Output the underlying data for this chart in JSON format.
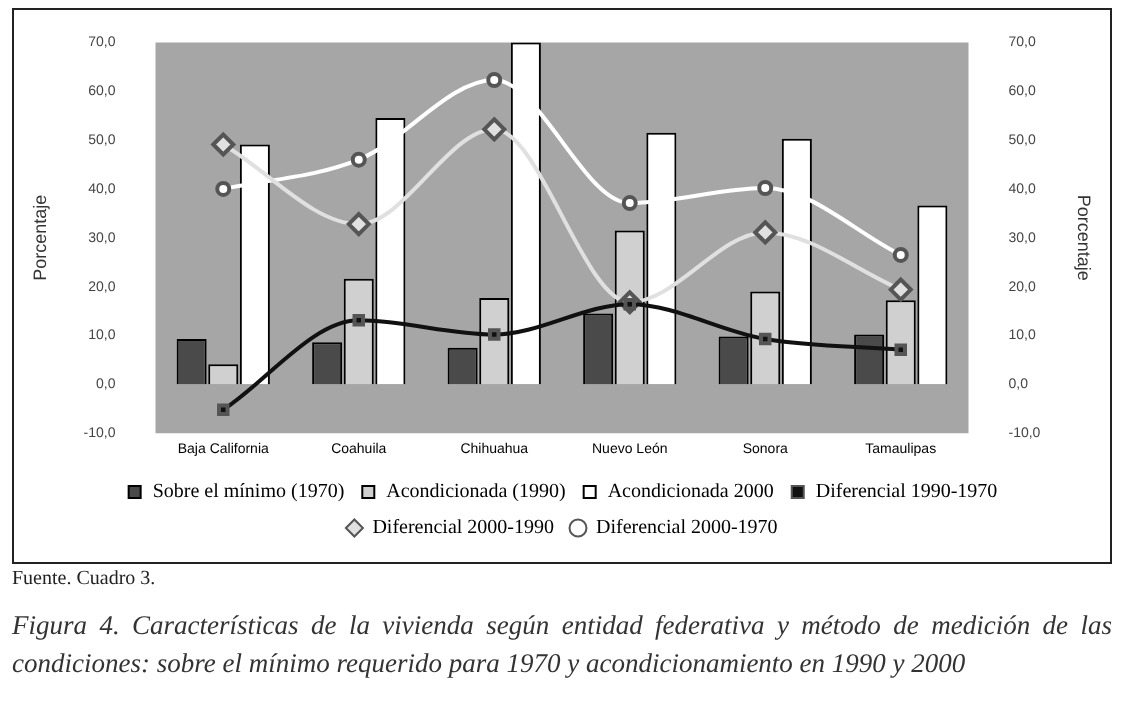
{
  "chart_data": {
    "type": "bar",
    "title": "Figura 4. Características de la vivienda según entidad federativa y método de medición de las condiciones: sobre el mínimo requerido para 1970 y acondicionamiento en 1990 y 2000",
    "ylabel": "Porcentaje",
    "y2label": "Porcentaje",
    "annotations": [
      "Fuente. Cuadro 3."
    ],
    "categories": [
      "Baja California",
      "Coahuila",
      "Chihuahua",
      "Nuevo León",
      "Sonora",
      "Tamaulipas"
    ],
    "series": [
      {
        "name": "Sobre el mínimo (1970)",
        "color": "#4a4a4a",
        "values": [
          9.3,
          8.6,
          7.5,
          14.5,
          9.8,
          10.2
        ]
      },
      {
        "name": "Acondicionada (1990)",
        "color": "#d0d0d0",
        "values": [
          4.1,
          21.6,
          17.7,
          31.5,
          19.0,
          17.2
        ]
      },
      {
        "name": "Acondicionada 2000",
        "color": "#ffffff",
        "values": [
          49.1,
          54.5,
          70.0,
          51.5,
          50.3,
          36.6
        ]
      },
      {
        "name": "Diferencial 1990-1970",
        "type": "line",
        "color": "#111111",
        "marker": "square",
        "values": [
          -5.2,
          13.1,
          10.2,
          16.4,
          9.3,
          7.1
        ]
      },
      {
        "name": "Diferencial 2000-1990",
        "type": "line",
        "color": "#e0e0e0",
        "marker": "diamond",
        "values": [
          49.1,
          32.8,
          52.2,
          16.8,
          31.1,
          19.4
        ]
      },
      {
        "name": "Diferencial 2000-1970",
        "type": "line",
        "color": "#ffffff",
        "marker": "circle",
        "values": [
          40.0,
          46.0,
          62.3,
          37.1,
          40.2,
          26.5
        ]
      }
    ],
    "ylim": [
      -10,
      70
    ],
    "yticks": [
      {
        "value": -10,
        "label": "-10,0"
      },
      {
        "value": 0,
        "label": "0,0"
      },
      {
        "value": 10,
        "label": "10,0"
      },
      {
        "value": 20,
        "label": "20,0"
      },
      {
        "value": 30,
        "label": "30,0"
      },
      {
        "value": 40,
        "label": "40,0"
      },
      {
        "value": 50,
        "label": "50,0"
      },
      {
        "value": 60,
        "label": "60,0"
      },
      {
        "value": 70,
        "label": "70,0"
      }
    ],
    "y2lim": [
      -10,
      70
    ],
    "y2ticks": [
      {
        "value": -10,
        "label": "-10,0"
      },
      {
        "value": 0,
        "label": "0,0"
      },
      {
        "value": 10,
        "label": "10,0"
      },
      {
        "value": 20,
        "label": "20,0"
      },
      {
        "value": 30,
        "label": "30,0"
      },
      {
        "value": 40,
        "label": "40,0"
      },
      {
        "value": 50,
        "label": "50,0"
      },
      {
        "value": 60,
        "label": "60,0"
      },
      {
        "value": 70,
        "label": "70,0"
      }
    ],
    "grid": false,
    "legend": "bottom"
  }
}
